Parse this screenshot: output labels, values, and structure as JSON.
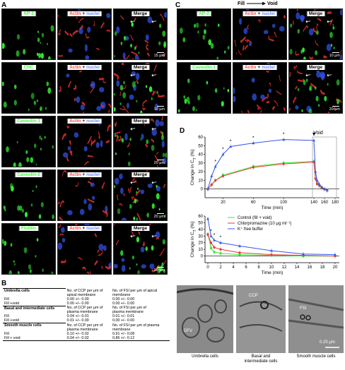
{
  "panels": {
    "a": "A",
    "b": "B",
    "c": "C",
    "d": "D"
  },
  "labels": {
    "ap2": "AP-2",
    "chc": "CHC",
    "cav1": "Caveolin-1",
    "cav2": "Caveolin-2",
    "flot": "Flotilin",
    "actin": "Actin",
    "plus": "+",
    "nuclei": "nuclei",
    "merge": "Merge"
  },
  "scales": {
    "a1": "15 μm",
    "a2": "10 μm",
    "a3": "20 μm",
    "a4": "20 μm",
    "a5": "20 μm",
    "c1": "10 μm",
    "c2": "20 μm"
  },
  "fill_void": {
    "fill": "Fill",
    "void": "Void"
  },
  "table": {
    "hdr_ccp_apical": [
      "No. of CCP per μm of",
      "apical membrane"
    ],
    "hdr_fsi_apical": [
      "No. of FSI per μm of apical",
      "membrane"
    ],
    "hdr_ccp_plasma": [
      "No. of CCP per μm of",
      "plasma membrane"
    ],
    "hdr_fsi_plasma": [
      "No. of FSI per μm of",
      "plasma membrane"
    ],
    "hdr_fsi_plasma2": [
      "No. of FSI per μm of plasma",
      "membrane"
    ],
    "umbrella": "Umbrella cells",
    "basal": "Basal and intermediate cells",
    "smooth": "Smooth muscle cells",
    "fill": "Fill",
    "fillvoid": "Fill +void",
    "fillvoid2": "Fill + void",
    "u": [
      [
        "0.00 +/– 0.00",
        "0.00 +/– 0.00"
      ],
      [
        "0.00 +/– 0.00",
        "0.00 +/– 0.00"
      ]
    ],
    "b": [
      [
        "0.04 +/– 0.01",
        "0.01 +/– 0.01"
      ],
      [
        "0.01 +/– 0.00",
        "0.00 +/– 0.00"
      ]
    ],
    "s": [
      [
        "0.10 +/– 0.02",
        "0.91 +/– 0.08"
      ],
      [
        "0.04 +/– 0.02",
        "0.86 +/– 0.12"
      ]
    ]
  },
  "em": {
    "dfv": "DFV",
    "ccp": "CCP",
    "fsi": "FSI",
    "scale": "0.25 μm",
    "cap_umbrella": "Umbrella cells",
    "cap_basal_1": "Basal and",
    "cap_basal_2": "intermediate cells",
    "cap_smooth": "Smooth muscle cells"
  },
  "colors": {
    "green": "#33ee33",
    "red": "#ee3333",
    "blue": "#3355ee",
    "control": "#33ee33",
    "chlor": "#ee3333",
    "kfree": "#3355ee"
  },
  "chart_data": [
    {
      "type": "line",
      "title": "",
      "xlabel": "Time (min)",
      "ylabel": "Change in CT (%)",
      "ylabel_main": "Change in C",
      "ylabel_sub": "T",
      "ylabel_unit": " (%)",
      "ylim": [
        -10,
        60
      ],
      "yticks": [
        0,
        10,
        20,
        30,
        40,
        50,
        60
      ],
      "xticks": [
        20,
        60,
        100,
        140,
        160,
        180
      ],
      "annotation": "Void",
      "star": "*",
      "series": [
        {
          "name": "Control (fill + void)",
          "x": [
            0,
            5,
            10,
            20,
            60,
            100,
            140,
            143,
            146,
            150,
            155,
            160,
            165
          ],
          "y": [
            0,
            5,
            10,
            16,
            26,
            30,
            32,
            12,
            6,
            4,
            2,
            0,
            -2
          ]
        },
        {
          "name": "Chlorpromazine (10 μg ml⁻¹)",
          "x": [
            0,
            5,
            10,
            20,
            60,
            100,
            140,
            143,
            146,
            150,
            155,
            160,
            165
          ],
          "y": [
            0,
            5,
            10,
            15,
            25,
            29,
            31,
            12,
            6,
            4,
            1,
            0,
            -1
          ]
        },
        {
          "name": "K⁺ free buffer",
          "x": [
            0,
            5,
            10,
            20,
            30,
            60,
            100,
            140,
            143,
            146,
            150,
            155,
            160,
            165
          ],
          "y": [
            0,
            15,
            26,
            40,
            49,
            53,
            57,
            56,
            20,
            10,
            6,
            2,
            0,
            -1
          ]
        }
      ],
      "starred_x": [
        10,
        20,
        30,
        60,
        100,
        140
      ]
    },
    {
      "type": "line",
      "title": "",
      "xlabel": "Time (min)",
      "ylabel": "Change in CT (%)",
      "ylabel_main": "Change in C",
      "ylabel_sub": "T",
      "ylabel_unit": " (%)",
      "ylim": [
        -10,
        60
      ],
      "yticks": [
        0,
        10,
        20,
        30,
        40,
        50,
        60
      ],
      "xticks": [
        0,
        2,
        4,
        6,
        8,
        10,
        12,
        14,
        16,
        18,
        20
      ],
      "star": "*",
      "legend_position": "top-right",
      "series": [
        {
          "name": "Control (fill + void)",
          "x": [
            0,
            0.5,
            1,
            2,
            5,
            10,
            15,
            20
          ],
          "y": [
            33,
            12,
            6,
            4,
            2,
            1,
            0,
            0
          ]
        },
        {
          "name": "Chlorpromazine (10 μg ml⁻¹)",
          "x": [
            0,
            0.5,
            1,
            2,
            5,
            10,
            15,
            20
          ],
          "y": [
            32,
            20,
            13,
            10,
            5,
            2,
            1,
            0
          ]
        },
        {
          "name": "K⁺ free buffer",
          "x": [
            0,
            0.5,
            1,
            2,
            5,
            10,
            15,
            20
          ],
          "y": [
            56,
            30,
            24,
            20,
            15,
            8,
            3,
            2
          ]
        }
      ],
      "starred_x": [
        0.5,
        1,
        2
      ]
    }
  ]
}
